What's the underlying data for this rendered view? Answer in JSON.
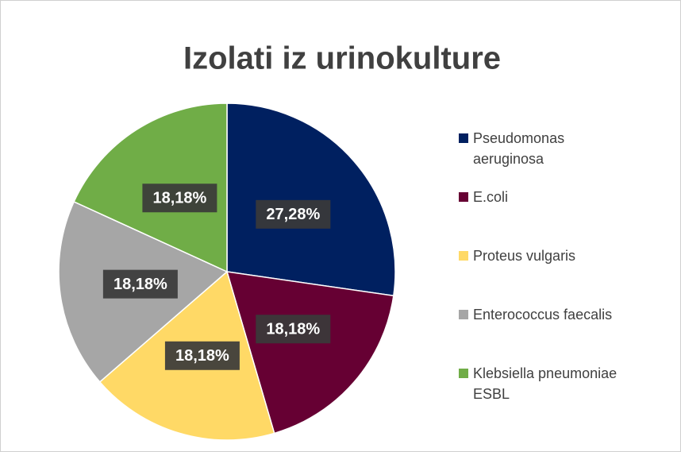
{
  "chart_data": {
    "type": "pie",
    "title": "Izolati iz urinokulture",
    "categories": [
      "Pseudomonas aeruginosa",
      "E.coli",
      "Proteus vulgaris",
      "Enterococcus faecalis",
      "Klebsiella pneumoniae ESBL"
    ],
    "values": [
      27.28,
      18.18,
      18.18,
      18.18,
      18.18
    ],
    "value_labels": [
      "27,28%",
      "18,18%",
      "18,18%",
      "18,18%",
      "18,18%"
    ],
    "colors": [
      "#002060",
      "#660033",
      "#ffd966",
      "#a6a6a6",
      "#70ad47"
    ],
    "legend": "right"
  }
}
